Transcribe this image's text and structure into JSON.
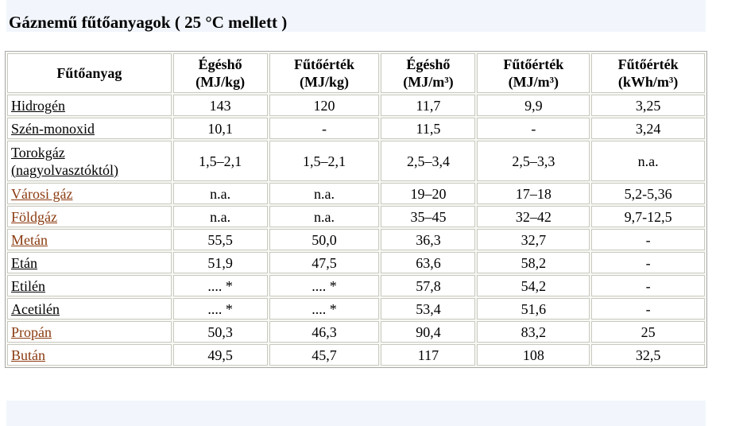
{
  "title": "Gáznemű fűtőanyagok ( 25 °C mellett )",
  "colors": {
    "link": "#8b3a10",
    "band": "#f2f6fc"
  },
  "table": {
    "headers": [
      {
        "line1": "Fűtőanyag",
        "line2": ""
      },
      {
        "line1": "Égéshő",
        "line2": "(MJ/kg)"
      },
      {
        "line1": "Fűtőérték",
        "line2": "(MJ/kg)"
      },
      {
        "line1": "Égéshő",
        "line2": "(MJ/m³)"
      },
      {
        "line1": "Fűtőérték",
        "line2": "(MJ/m³)"
      },
      {
        "line1": "Fűtőérték",
        "line2": "(kWh/m³)"
      }
    ],
    "rows": [
      {
        "name": "Hidrogén",
        "name2": "",
        "link_color": "plain",
        "values": [
          "143",
          "120",
          "11,7",
          "9,9",
          "3,25"
        ]
      },
      {
        "name": "Szén-monoxid",
        "name2": "",
        "link_color": "plain",
        "values": [
          "10,1",
          "-",
          "11,5",
          "-",
          "3,24"
        ]
      },
      {
        "name": "Torokgáz",
        "name2": "(nagyolvasztóktól)",
        "link_color": "plain",
        "values": [
          "1,5–2,1",
          "1,5–2,1",
          "2,5–3,4",
          "2,5–3,3",
          "n.a."
        ]
      },
      {
        "name": "Városi gáz",
        "name2": "",
        "link_color": "linked",
        "values": [
          "n.a.",
          "n.a.",
          "19–20",
          "17–18",
          "5,2-5,36"
        ]
      },
      {
        "name": "Földgáz",
        "name2": "",
        "link_color": "linked",
        "values": [
          "n.a.",
          "n.a.",
          "35–45",
          "32–42",
          "9,7-12,5"
        ]
      },
      {
        "name": "Metán",
        "name2": "",
        "link_color": "linked",
        "values": [
          "55,5",
          "50,0",
          "36,3",
          "32,7",
          "-"
        ]
      },
      {
        "name": "Etán",
        "name2": "",
        "link_color": "plain",
        "values": [
          "51,9",
          "47,5",
          "63,6",
          "58,2",
          "-"
        ]
      },
      {
        "name": "Etilén",
        "name2": "",
        "link_color": "plain",
        "values": [
          ".... *",
          ".... *",
          "57,8",
          "54,2",
          "-"
        ]
      },
      {
        "name": "Acetilén",
        "name2": "",
        "link_color": "plain",
        "values": [
          ".... *",
          ".... *",
          "53,4",
          "51,6",
          "-"
        ]
      },
      {
        "name": "Propán",
        "name2": "",
        "link_color": "linked",
        "values": [
          "50,3",
          "46,3",
          "90,4",
          "83,2",
          "25"
        ]
      },
      {
        "name": "Bután",
        "name2": "",
        "link_color": "linked",
        "values": [
          "49,5",
          "45,7",
          "117",
          "108",
          "32,5"
        ]
      }
    ]
  }
}
